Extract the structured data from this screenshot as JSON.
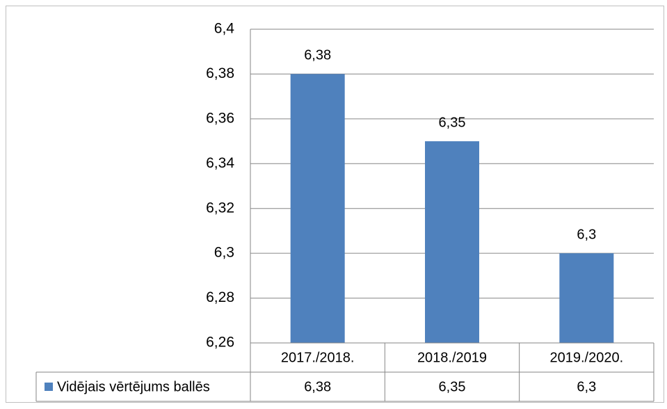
{
  "chart_data": {
    "type": "bar",
    "categories": [
      "2017./2018.",
      "2018./2019",
      "2019./2020."
    ],
    "series": [
      {
        "name": "Vidējais vērtējums ballēs",
        "color": "#4f81bd",
        "values": [
          6.38,
          6.35,
          6.3
        ],
        "value_labels": [
          "6,38",
          "6,35",
          "6,3"
        ]
      }
    ],
    "ylim": [
      6.26,
      6.4
    ],
    "yticks": [
      {
        "value": 6.26,
        "label": "6,26"
      },
      {
        "value": 6.28,
        "label": "6,28"
      },
      {
        "value": 6.3,
        "label": "6,3"
      },
      {
        "value": 6.32,
        "label": "6,32"
      },
      {
        "value": 6.34,
        "label": "6,34"
      },
      {
        "value": 6.36,
        "label": "6,36"
      },
      {
        "value": 6.38,
        "label": "6,38"
      },
      {
        "value": 6.4,
        "label": "6,4"
      }
    ],
    "grid": true,
    "data_table": true
  }
}
